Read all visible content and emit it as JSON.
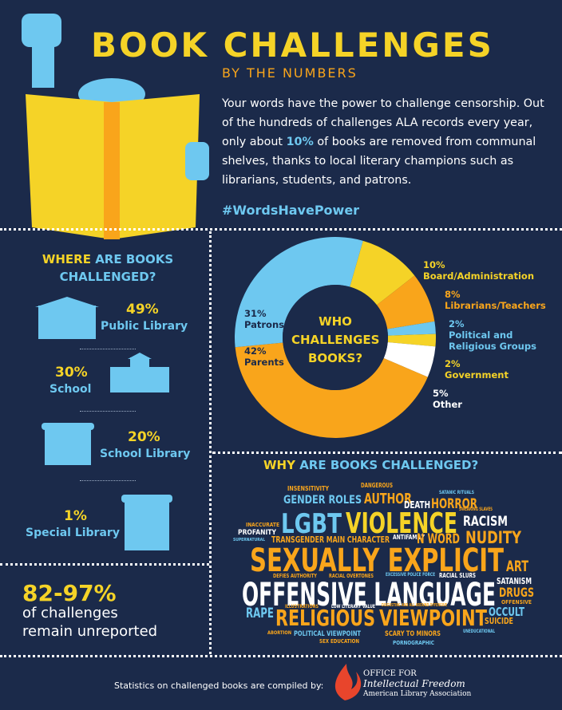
{
  "header": {
    "title": "BOOK CHALLENGES",
    "subtitle": "BY THE NUMBERS",
    "intro": [
      "Your words have the power to challenge censorship. Out of the hundreds of challenges ALA records every year, only about ",
      "10%",
      " of books are removed from communal shelves, thanks to local literary champions such as librarians, students, and patrons."
    ],
    "hashtag": "#WordsHavePower"
  },
  "where": {
    "title": [
      "WHERE",
      " ARE BOOKS CHALLENGED?"
    ],
    "items": [
      {
        "percent": "49%",
        "label": "Public Library"
      },
      {
        "percent": "30%",
        "label": "School"
      },
      {
        "percent": "20%",
        "label": "School Library"
      },
      {
        "percent": "1%",
        "label": "Special Library"
      }
    ]
  },
  "unreported": {
    "figure": "82-97%",
    "text": [
      "of challenges",
      "remain unreported"
    ]
  },
  "chart_data": {
    "type": "pie",
    "title": "WHO CHALLENGES BOOKS?",
    "categories": [
      "Board/Administration",
      "Librarians/Teachers",
      "Political and Religious Groups",
      "Government",
      "Other",
      "Parents",
      "Patrons"
    ],
    "values": [
      10,
      8,
      2,
      2,
      5,
      42,
      31
    ],
    "value_labels": [
      "10%",
      "8%",
      "2%",
      "2%",
      "5%",
      "42%",
      "31%"
    ],
    "colors": [
      "#f5d327",
      "#f9a51b",
      "#6ec8f0",
      "#f5d327",
      "#ffffff",
      "#f9a51b",
      "#6ec8f0"
    ]
  },
  "why": {
    "title": [
      "WHY",
      " ARE BOOKS CHALLENGED?"
    ],
    "words": [
      "INSENSITIVITY",
      "DANGEROUS",
      "GENDER ROLES",
      "AUTHOR",
      "SATANIC RITUALS",
      "DEATH",
      "HORROR",
      "INACCURATE",
      "LGBT",
      "VIOLENCE",
      "SWEARING SLAVES",
      "RACISM",
      "PROFANITY",
      "TRANSGENDER MAIN CHARACTER",
      "ANTIFAMILY",
      "N WORD",
      "NUDITY",
      "SUPERNATURAL",
      "SEXUALLY EXPLICIT",
      "ART",
      "DEFIES AUTHORITY",
      "RACIAL OVERTONES",
      "EXCESSIVE POLICE FORCE",
      "RACIAL SLURS",
      "SATANISM",
      "OFFENSIVE LANGUAGE",
      "DRUGS",
      "OFFENSIVE",
      "ILLUSTRATIONS",
      "LOW LITERARY VALUE",
      "DISGUSTING AND ALL AROUND OFFENSIVE",
      "OCCULT",
      "RAPE",
      "RELIGIOUS",
      "VIEWPOINT",
      "SUICIDE",
      "ABORTION",
      "POLITICAL VIEWPOINT",
      "SCARY TO MINORS",
      "UNEDUCATIONAL",
      "SEX EDUCATION",
      "PORNOGRAPHIC"
    ]
  },
  "footer": {
    "credit": "Statistics on challenged books are compiled by:",
    "org": [
      "OFFICE FOR",
      "Intellectual Freedom",
      "American Library Association"
    ]
  }
}
